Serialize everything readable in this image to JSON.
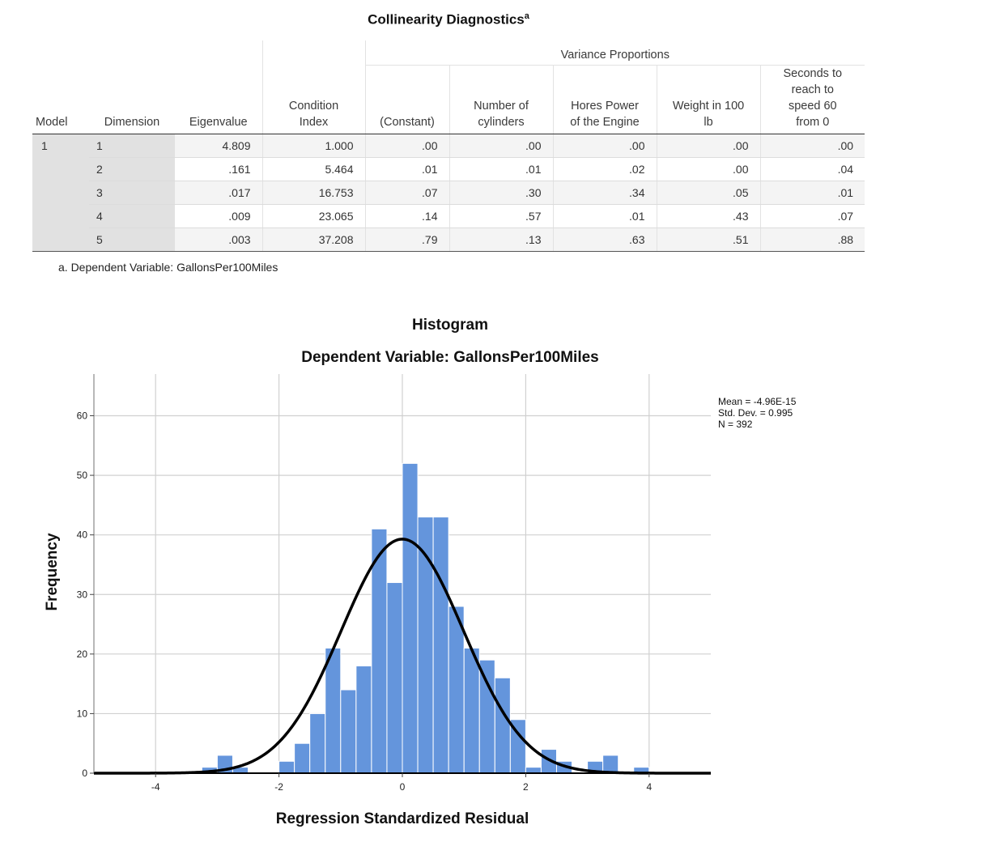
{
  "table": {
    "title": "Collinearity Diagnostics",
    "title_sup": "a",
    "group_header": "Variance Proportions",
    "headers": {
      "model": "Model",
      "dimension": "Dimension",
      "eigenvalue": "Eigenvalue",
      "condition_index_1": "Condition",
      "condition_index_2": "Index",
      "constant": "(Constant)",
      "cylinders_1": "Number of",
      "cylinders_2": "cylinders",
      "horsepower_1": "Hores Power",
      "horsepower_2": "of the Engine",
      "weight_1": "Weight in 100",
      "weight_2": "lb",
      "seconds_1": "Seconds to",
      "seconds_2": "reach to",
      "seconds_3": "speed 60",
      "seconds_4": "from 0"
    },
    "model": "1",
    "rows": [
      {
        "dimension": "1",
        "eigenvalue": "4.809",
        "condition_index": "1.000",
        "constant": ".00",
        "cylinders": ".00",
        "horsepower": ".00",
        "weight": ".00",
        "seconds": ".00"
      },
      {
        "dimension": "2",
        "eigenvalue": ".161",
        "condition_index": "5.464",
        "constant": ".01",
        "cylinders": ".01",
        "horsepower": ".02",
        "weight": ".00",
        "seconds": ".04"
      },
      {
        "dimension": "3",
        "eigenvalue": ".017",
        "condition_index": "16.753",
        "constant": ".07",
        "cylinders": ".30",
        "horsepower": ".34",
        "weight": ".05",
        "seconds": ".01"
      },
      {
        "dimension": "4",
        "eigenvalue": ".009",
        "condition_index": "23.065",
        "constant": ".14",
        "cylinders": ".57",
        "horsepower": ".01",
        "weight": ".43",
        "seconds": ".07"
      },
      {
        "dimension": "5",
        "eigenvalue": ".003",
        "condition_index": "37.208",
        "constant": ".79",
        "cylinders": ".13",
        "horsepower": ".63",
        "weight": ".51",
        "seconds": ".88"
      }
    ],
    "footnote": "a. Dependent Variable: GallonsPer100Miles"
  },
  "chart_data": {
    "type": "bar",
    "title": "Histogram",
    "subtitle": "Dependent Variable: GallonsPer100Miles",
    "xlabel": "Regression Standardized Residual",
    "ylabel": "Frequency",
    "xlim": [
      -5,
      5
    ],
    "ylim": [
      0,
      67
    ],
    "xticks": [
      -4,
      -2,
      0,
      2,
      4
    ],
    "yticks": [
      0,
      10,
      20,
      30,
      40,
      50,
      60
    ],
    "grid": true,
    "bar_color": "#6495dc",
    "bin_width": 0.25,
    "bin_starts": [
      -3.25,
      -3.0,
      -2.75,
      -2.5,
      -2.25,
      -2.0,
      -1.75,
      -1.5,
      -1.25,
      -1.0,
      -0.75,
      -0.5,
      -0.25,
      0.0,
      0.25,
      0.5,
      0.75,
      1.0,
      1.25,
      1.5,
      1.75,
      2.0,
      2.25,
      2.5,
      2.75,
      3.0,
      3.25,
      3.5,
      3.75
    ],
    "values": [
      1,
      3,
      1,
      0,
      0,
      2,
      5,
      10,
      21,
      14,
      18,
      41,
      32,
      52,
      43,
      43,
      28,
      21,
      19,
      16,
      9,
      1,
      4,
      2,
      0,
      2,
      3,
      0,
      1
    ],
    "normal_curve": {
      "mean": 0,
      "sd": 0.995,
      "n": 392
    },
    "stats": {
      "mean": "Mean = -4.96E-15",
      "std_dev": "Std. Dev. = 0.995",
      "n": "N = 392"
    }
  }
}
